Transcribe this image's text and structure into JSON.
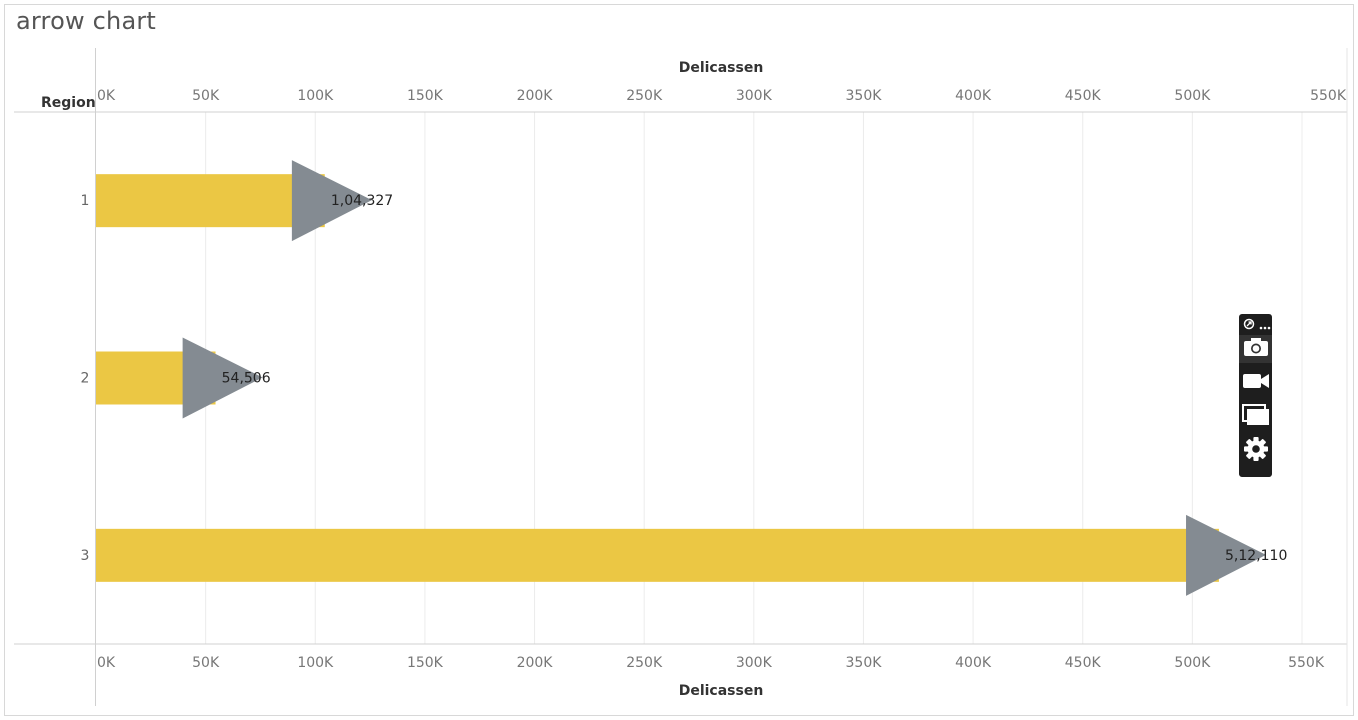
{
  "title": "arrow chart",
  "chart_data": {
    "type": "bar",
    "ylabel": "Region",
    "xlabel": "Delicassen",
    "categories": [
      "1",
      "2",
      "3"
    ],
    "values": [
      104327,
      54506,
      512110
    ],
    "value_labels": [
      "1,04,327",
      "54,506",
      "5,12,110"
    ],
    "xlim": [
      0,
      550000
    ],
    "xticks": [
      0,
      50000,
      100000,
      150000,
      200000,
      250000,
      300000,
      350000,
      400000,
      450000,
      500000,
      550000
    ],
    "xtick_labels": [
      "0K",
      "50K",
      "100K",
      "150K",
      "200K",
      "250K",
      "300K",
      "350K",
      "400K",
      "450K",
      "500K",
      "550K"
    ],
    "bar_color": "#EBC744",
    "arrow_color": "#848B92",
    "grid": true
  },
  "toolbar": {
    "icons": [
      "share-icon",
      "more-icon",
      "camera-icon",
      "video-icon",
      "window-icon",
      "gear-icon"
    ]
  }
}
